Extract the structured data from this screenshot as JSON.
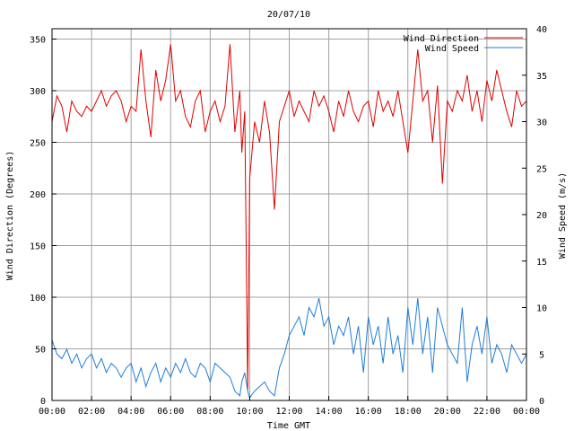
{
  "chart_data": {
    "type": "line",
    "title": "20/07/10",
    "xlabel": "Time GMT",
    "ylabel": "Wind Direction (Degrees)",
    "y2label": "Wind Speed (m/s)",
    "grid": true,
    "legend_position": "top-right",
    "x_range_hours": [
      0,
      24
    ],
    "ylim": [
      0,
      360
    ],
    "y2lim": [
      0,
      40
    ],
    "x_ticks": [
      "00:00",
      "02:00",
      "04:00",
      "06:00",
      "08:00",
      "10:00",
      "12:00",
      "14:00",
      "16:00",
      "18:00",
      "20:00",
      "22:00",
      "00:00"
    ],
    "y_ticks": [
      "0",
      "50",
      "100",
      "150",
      "200",
      "250",
      "300",
      "350"
    ],
    "y2_ticks": [
      "0",
      "5",
      "10",
      "15",
      "20",
      "25",
      "30",
      "35",
      "40"
    ],
    "colors": {
      "grid": "#a0a0a0",
      "frame": "#000000"
    },
    "series": [
      {
        "name": "Wind Direction",
        "axis": "left",
        "color": "#e00000",
        "x_hours": [
          0,
          0.25,
          0.5,
          0.75,
          1,
          1.25,
          1.5,
          1.75,
          2,
          2.25,
          2.5,
          2.75,
          3,
          3.25,
          3.5,
          3.75,
          4,
          4.25,
          4.5,
          4.75,
          5,
          5.25,
          5.5,
          5.75,
          6,
          6.25,
          6.5,
          6.75,
          7,
          7.25,
          7.5,
          7.75,
          8,
          8.25,
          8.5,
          8.75,
          9,
          9.25,
          9.5,
          9.6,
          9.75,
          9.9,
          10,
          10.25,
          10.5,
          10.75,
          11,
          11.25,
          11.5,
          11.75,
          12,
          12.25,
          12.5,
          12.75,
          13,
          13.25,
          13.5,
          13.75,
          14,
          14.25,
          14.5,
          14.75,
          15,
          15.25,
          15.5,
          15.75,
          16,
          16.25,
          16.5,
          16.75,
          17,
          17.25,
          17.5,
          17.75,
          18,
          18.25,
          18.5,
          18.75,
          19,
          19.25,
          19.5,
          19.75,
          20,
          20.25,
          20.5,
          20.75,
          21,
          21.25,
          21.5,
          21.75,
          22,
          22.25,
          22.5,
          22.75,
          23,
          23.25,
          23.5,
          23.75,
          24
        ],
        "values": [
          270,
          295,
          285,
          260,
          290,
          280,
          275,
          285,
          280,
          290,
          300,
          285,
          295,
          300,
          290,
          270,
          285,
          280,
          340,
          290,
          255,
          320,
          290,
          310,
          345,
          290,
          300,
          275,
          265,
          290,
          300,
          260,
          280,
          290,
          270,
          285,
          345,
          260,
          300,
          240,
          280,
          10,
          215,
          270,
          250,
          290,
          260,
          185,
          270,
          285,
          300,
          275,
          290,
          280,
          270,
          300,
          285,
          295,
          280,
          260,
          290,
          275,
          300,
          280,
          270,
          285,
          290,
          265,
          300,
          280,
          290,
          275,
          300,
          270,
          240,
          290,
          340,
          290,
          300,
          250,
          305,
          210,
          290,
          280,
          300,
          290,
          315,
          280,
          300,
          270,
          310,
          290,
          320,
          300,
          280,
          265,
          300,
          285,
          290
        ]
      },
      {
        "name": "Wind Speed",
        "axis": "right",
        "color": "#1e7ed8",
        "x_hours": [
          0,
          0.25,
          0.5,
          0.75,
          1,
          1.25,
          1.5,
          1.75,
          2,
          2.25,
          2.5,
          2.75,
          3,
          3.25,
          3.5,
          3.75,
          4,
          4.25,
          4.5,
          4.75,
          5,
          5.25,
          5.5,
          5.75,
          6,
          6.25,
          6.5,
          6.75,
          7,
          7.25,
          7.5,
          7.75,
          8,
          8.25,
          8.5,
          8.75,
          9,
          9.25,
          9.5,
          9.6,
          9.75,
          9.9,
          10,
          10.25,
          10.5,
          10.75,
          11,
          11.25,
          11.5,
          11.75,
          12,
          12.25,
          12.5,
          12.75,
          13,
          13.25,
          13.5,
          13.75,
          14,
          14.25,
          14.5,
          14.75,
          15,
          15.25,
          15.5,
          15.75,
          16,
          16.25,
          16.5,
          16.75,
          17,
          17.25,
          17.5,
          17.75,
          18,
          18.25,
          18.5,
          18.75,
          19,
          19.25,
          19.5,
          19.75,
          20,
          20.25,
          20.5,
          20.75,
          21,
          21.25,
          21.5,
          21.75,
          22,
          22.25,
          22.5,
          22.75,
          23,
          23.25,
          23.5,
          23.75,
          24
        ],
        "values": [
          6.5,
          5,
          4.5,
          5.5,
          4,
          5,
          3.5,
          4.5,
          5,
          3.5,
          4.5,
          3,
          4,
          3.5,
          2.5,
          3.5,
          4,
          2,
          3.5,
          1.5,
          3,
          4,
          2,
          3.5,
          2.5,
          4,
          3,
          4.5,
          3,
          2.5,
          4,
          3.5,
          2,
          4,
          3.5,
          3,
          2.5,
          1,
          0.5,
          2,
          3,
          1,
          0.3,
          1,
          1.5,
          2,
          1,
          0.5,
          3.5,
          5,
          7,
          8,
          9,
          7,
          10,
          9,
          11,
          8,
          9,
          6,
          8,
          7,
          9,
          5,
          8,
          3,
          9,
          6,
          8,
          4,
          9,
          5,
          7,
          3,
          10,
          6,
          11,
          5,
          9,
          3,
          10,
          8,
          6,
          5,
          4,
          10,
          2,
          6,
          8,
          5,
          9,
          4,
          6,
          5,
          3,
          6,
          5,
          4,
          5
        ]
      }
    ]
  }
}
